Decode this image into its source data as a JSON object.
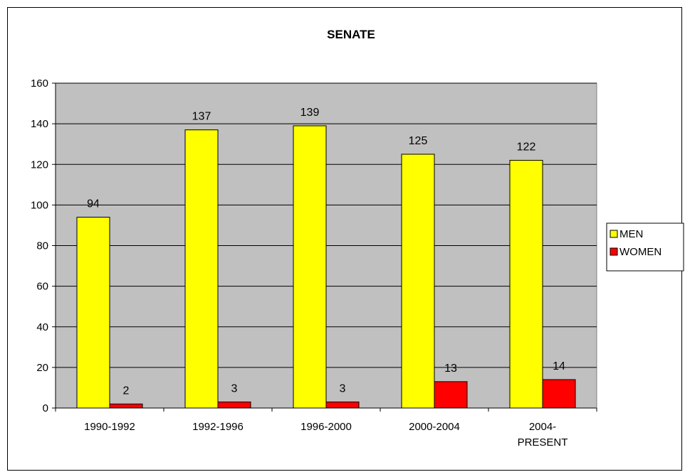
{
  "chart_data": {
    "type": "bar",
    "title": "SENATE",
    "categories": [
      [
        "1990-1992"
      ],
      [
        "1992-1996"
      ],
      [
        "1996-2000"
      ],
      [
        "2000-2004"
      ],
      [
        "2004-",
        "PRESENT"
      ]
    ],
    "series": [
      {
        "name": "MEN",
        "values": [
          94,
          137,
          139,
          125,
          122
        ],
        "color": "#FFFF00"
      },
      {
        "name": "WOMEN",
        "values": [
          2,
          3,
          3,
          13,
          14
        ],
        "color": "#FF0000"
      }
    ],
    "ylim": [
      0,
      160
    ],
    "yticks": [
      0,
      20,
      40,
      60,
      80,
      100,
      120,
      140,
      160
    ],
    "grid": true,
    "plot_background": "#C0C0C0",
    "legend_position": "right",
    "data_labels": true
  }
}
